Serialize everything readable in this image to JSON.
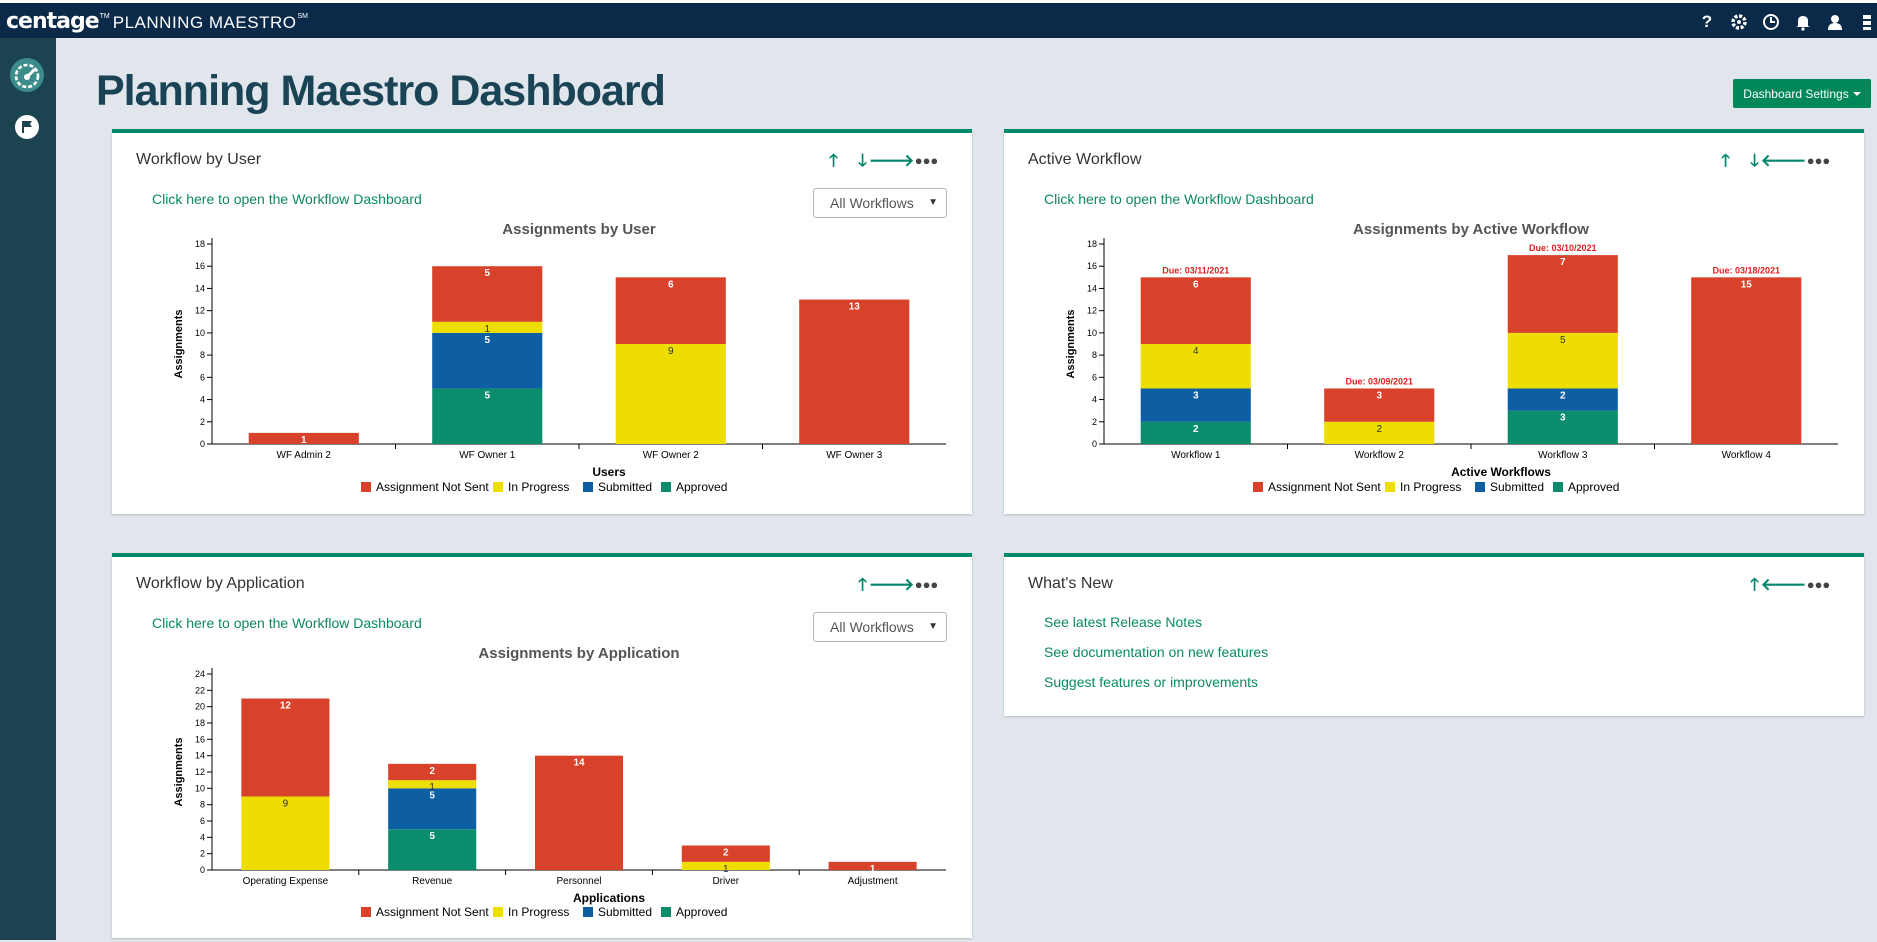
{
  "header": {
    "brand": "centage",
    "brand_tm": "TM",
    "product": "PLANNING MAESTRO",
    "product_tm": "SM",
    "icons": [
      "help-icon",
      "gear-icon",
      "clock-icon",
      "bell-icon",
      "user-icon",
      "grid-icon"
    ]
  },
  "sidebar": {
    "items": [
      "dashboard-gauge-icon",
      "flag-icon"
    ]
  },
  "page": {
    "title": "Planning Maestro Dashboard",
    "settings_label": "Dashboard Settings"
  },
  "colors": {
    "not_sent": "#d8412a",
    "in_progress": "#eddd00",
    "submitted": "#0d5ea3",
    "approved": "#0b8c6c",
    "accent": "#00876c"
  },
  "legend": [
    "Assignment Not Sent",
    "In Progress",
    "Submitted",
    "Approved"
  ],
  "panels": {
    "by_user": {
      "title": "Workflow by User",
      "link": "Click here to open the Workflow Dashboard",
      "select": "All Workflows"
    },
    "active": {
      "title": "Active Workflow",
      "link": "Click here to open the Workflow Dashboard"
    },
    "by_app": {
      "title": "Workflow by Application",
      "link": "Click here to open the Workflow Dashboard",
      "select": "All Workflows"
    },
    "whats_new": {
      "title": "What's New",
      "links": [
        "See latest Release Notes",
        "See documentation on new features",
        "Suggest features or improvements"
      ]
    }
  },
  "chart_data": [
    {
      "type": "bar",
      "title": "Assignments by User",
      "xlabel": "Users",
      "ylabel": "Assignments",
      "ylim": [
        0,
        18
      ],
      "yticks": [
        0,
        2,
        4,
        6,
        8,
        10,
        12,
        14,
        16,
        18
      ],
      "stacked": true,
      "categories": [
        "WF Admin 2",
        "WF Owner 1",
        "WF Owner 2",
        "WF Owner 3"
      ],
      "series": [
        {
          "name": "Approved",
          "values": [
            0,
            5,
            0,
            0
          ]
        },
        {
          "name": "Submitted",
          "values": [
            0,
            5,
            0,
            0
          ]
        },
        {
          "name": "In Progress",
          "values": [
            0,
            1,
            9,
            0
          ]
        },
        {
          "name": "Assignment Not Sent",
          "values": [
            1,
            5,
            6,
            13
          ]
        }
      ]
    },
    {
      "type": "bar",
      "title": "Assignments by Active Workflow",
      "xlabel": "Active Workflows",
      "ylabel": "Assignments",
      "ylim": [
        0,
        18
      ],
      "yticks": [
        0,
        2,
        4,
        6,
        8,
        10,
        12,
        14,
        16,
        18
      ],
      "stacked": true,
      "categories": [
        "Workflow 1",
        "Workflow 2",
        "Workflow 3",
        "Workflow 4"
      ],
      "annotations": [
        "Due: 03/11/2021",
        "Due: 03/09/2021",
        "Due: 03/10/2021",
        "Due: 03/18/2021"
      ],
      "series": [
        {
          "name": "Approved",
          "values": [
            2,
            0,
            3,
            0
          ]
        },
        {
          "name": "Submitted",
          "values": [
            3,
            0,
            2,
            0
          ]
        },
        {
          "name": "In Progress",
          "values": [
            4,
            2,
            5,
            0
          ]
        },
        {
          "name": "Assignment Not Sent",
          "values": [
            6,
            3,
            7,
            15
          ]
        }
      ]
    },
    {
      "type": "bar",
      "title": "Assignments by Application",
      "xlabel": "Applications",
      "ylabel": "Assignments",
      "ylim": [
        0,
        24
      ],
      "yticks": [
        0,
        2,
        4,
        6,
        8,
        10,
        12,
        14,
        16,
        18,
        20,
        22,
        24
      ],
      "stacked": true,
      "categories": [
        "Operating Expense",
        "Revenue",
        "Personnel",
        "Driver",
        "Adjustment"
      ],
      "series": [
        {
          "name": "Approved",
          "values": [
            0,
            5,
            0,
            0,
            0
          ]
        },
        {
          "name": "Submitted",
          "values": [
            0,
            5,
            0,
            0,
            0
          ]
        },
        {
          "name": "In Progress",
          "values": [
            9,
            1,
            0,
            1,
            0
          ]
        },
        {
          "name": "Assignment Not Sent",
          "values": [
            12,
            2,
            14,
            2,
            1
          ]
        }
      ]
    }
  ]
}
